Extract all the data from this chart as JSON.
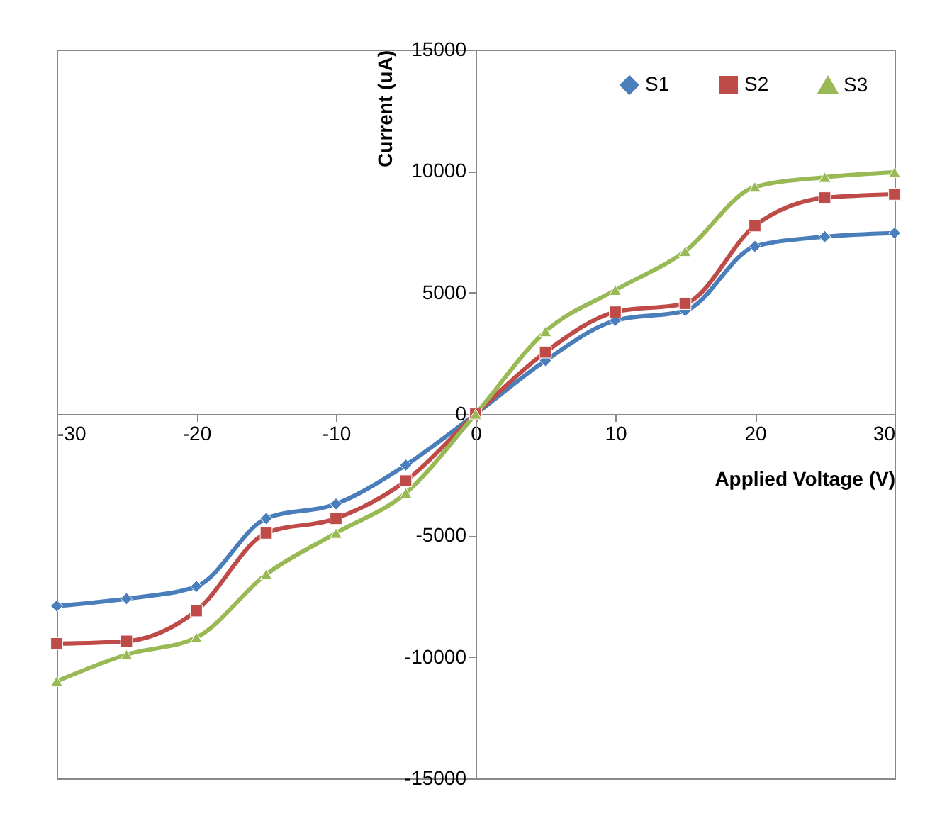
{
  "chart_data": {
    "type": "line",
    "xlabel": "Applied Voltage (V)",
    "ylabel": "Current (uA)",
    "x": [
      -30,
      -25,
      -20,
      -15,
      -10,
      -5,
      0,
      5,
      10,
      15,
      20,
      25,
      30
    ],
    "series": [
      {
        "name": "S1",
        "color": "#4a7ebb",
        "marker": "diamond",
        "values": [
          -7900,
          -7600,
          -7100,
          -4300,
          -3700,
          -2100,
          0,
          2200,
          3850,
          4250,
          6900,
          7300,
          7450
        ]
      },
      {
        "name": "S2",
        "color": "#be4b48",
        "marker": "square",
        "values": [
          -9450,
          -9350,
          -8100,
          -4900,
          -4300,
          -2750,
          0,
          2550,
          4200,
          4550,
          7750,
          8900,
          9050
        ]
      },
      {
        "name": "S3",
        "color": "#98b954",
        "marker": "triangle",
        "values": [
          -11000,
          -9900,
          -9200,
          -6600,
          -4900,
          -3250,
          0,
          3400,
          5100,
          6700,
          9350,
          9750,
          9950
        ]
      }
    ],
    "xlim": [
      -30,
      30
    ],
    "xticks": [
      -30,
      -20,
      -10,
      0,
      10,
      20,
      30
    ],
    "ylim": [
      -15000,
      15000
    ],
    "yticks": [
      -15000,
      -10000,
      -5000,
      0,
      5000,
      10000,
      15000
    ],
    "grid": false,
    "legend": "top right",
    "line_style": "solid"
  }
}
